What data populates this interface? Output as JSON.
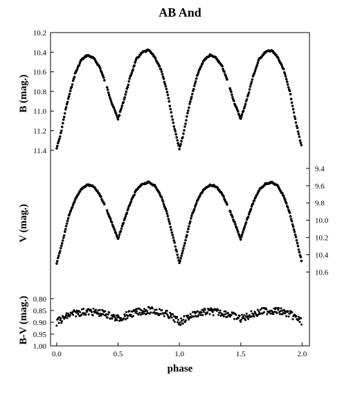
{
  "chart_data": {
    "type": "scatter",
    "title": "AB And",
    "xlabel": "phase",
    "x_ticks": [
      "0.0",
      "0.5",
      "1.0",
      "1.5",
      "2.0"
    ],
    "xlim": [
      -0.05,
      2.06
    ],
    "panels": [
      {
        "name": "B",
        "ylabel": "B (mag.)",
        "axis_side": "left",
        "inverted": true,
        "ylim": [
          10.2,
          11.5
        ],
        "y_ticks": [
          "10.2",
          "10.4",
          "10.6",
          "10.8",
          "11.0",
          "11.2",
          "11.4"
        ],
        "period_shape": {
          "phase": [
            0.0,
            0.03,
            0.07,
            0.1,
            0.15,
            0.2,
            0.25,
            0.3,
            0.35,
            0.4,
            0.45,
            0.5,
            0.55,
            0.6,
            0.65,
            0.7,
            0.75,
            0.8,
            0.85,
            0.9,
            0.95,
            1.0
          ],
          "mag": [
            11.38,
            11.25,
            11.0,
            10.85,
            10.62,
            10.48,
            10.43,
            10.46,
            10.55,
            10.72,
            10.92,
            11.08,
            10.88,
            10.65,
            10.47,
            10.4,
            10.38,
            10.45,
            10.58,
            10.8,
            11.12,
            11.38
          ]
        }
      },
      {
        "name": "V",
        "ylabel": "V (mag.)",
        "axis_side": "right",
        "inverted": true,
        "ylim": [
          9.32,
          10.75
        ],
        "y_ticks": [
          "9.4",
          "9.6",
          "9.8",
          "10.0",
          "10.2",
          "10.4",
          "10.6"
        ],
        "period_shape": {
          "phase": [
            0.0,
            0.03,
            0.07,
            0.1,
            0.15,
            0.2,
            0.25,
            0.3,
            0.35,
            0.4,
            0.45,
            0.5,
            0.55,
            0.6,
            0.65,
            0.7,
            0.75,
            0.8,
            0.85,
            0.9,
            0.95,
            1.0
          ],
          "mag": [
            10.5,
            10.35,
            10.12,
            9.95,
            9.76,
            9.64,
            9.59,
            9.61,
            9.7,
            9.85,
            10.03,
            10.22,
            10.0,
            9.8,
            9.65,
            9.58,
            9.56,
            9.6,
            9.72,
            9.92,
            10.2,
            10.5
          ]
        }
      },
      {
        "name": "B-V",
        "ylabel": "B-V (mag.)",
        "axis_side": "left",
        "inverted": true,
        "ylim": [
          0.78,
          1.0
        ],
        "y_ticks": [
          "0.80",
          "0.85",
          "0.90",
          "0.95",
          "1.00"
        ],
        "period_shape": {
          "phase": [
            0.0,
            0.05,
            0.1,
            0.15,
            0.2,
            0.25,
            0.3,
            0.35,
            0.4,
            0.45,
            0.5,
            0.55,
            0.6,
            0.65,
            0.7,
            0.75,
            0.8,
            0.85,
            0.9,
            0.95,
            1.0
          ],
          "mag": [
            0.9,
            0.885,
            0.87,
            0.862,
            0.857,
            0.855,
            0.857,
            0.86,
            0.865,
            0.875,
            0.885,
            0.875,
            0.865,
            0.858,
            0.852,
            0.85,
            0.852,
            0.858,
            0.866,
            0.88,
            0.9
          ]
        }
      }
    ],
    "marker_color": "#000000"
  }
}
